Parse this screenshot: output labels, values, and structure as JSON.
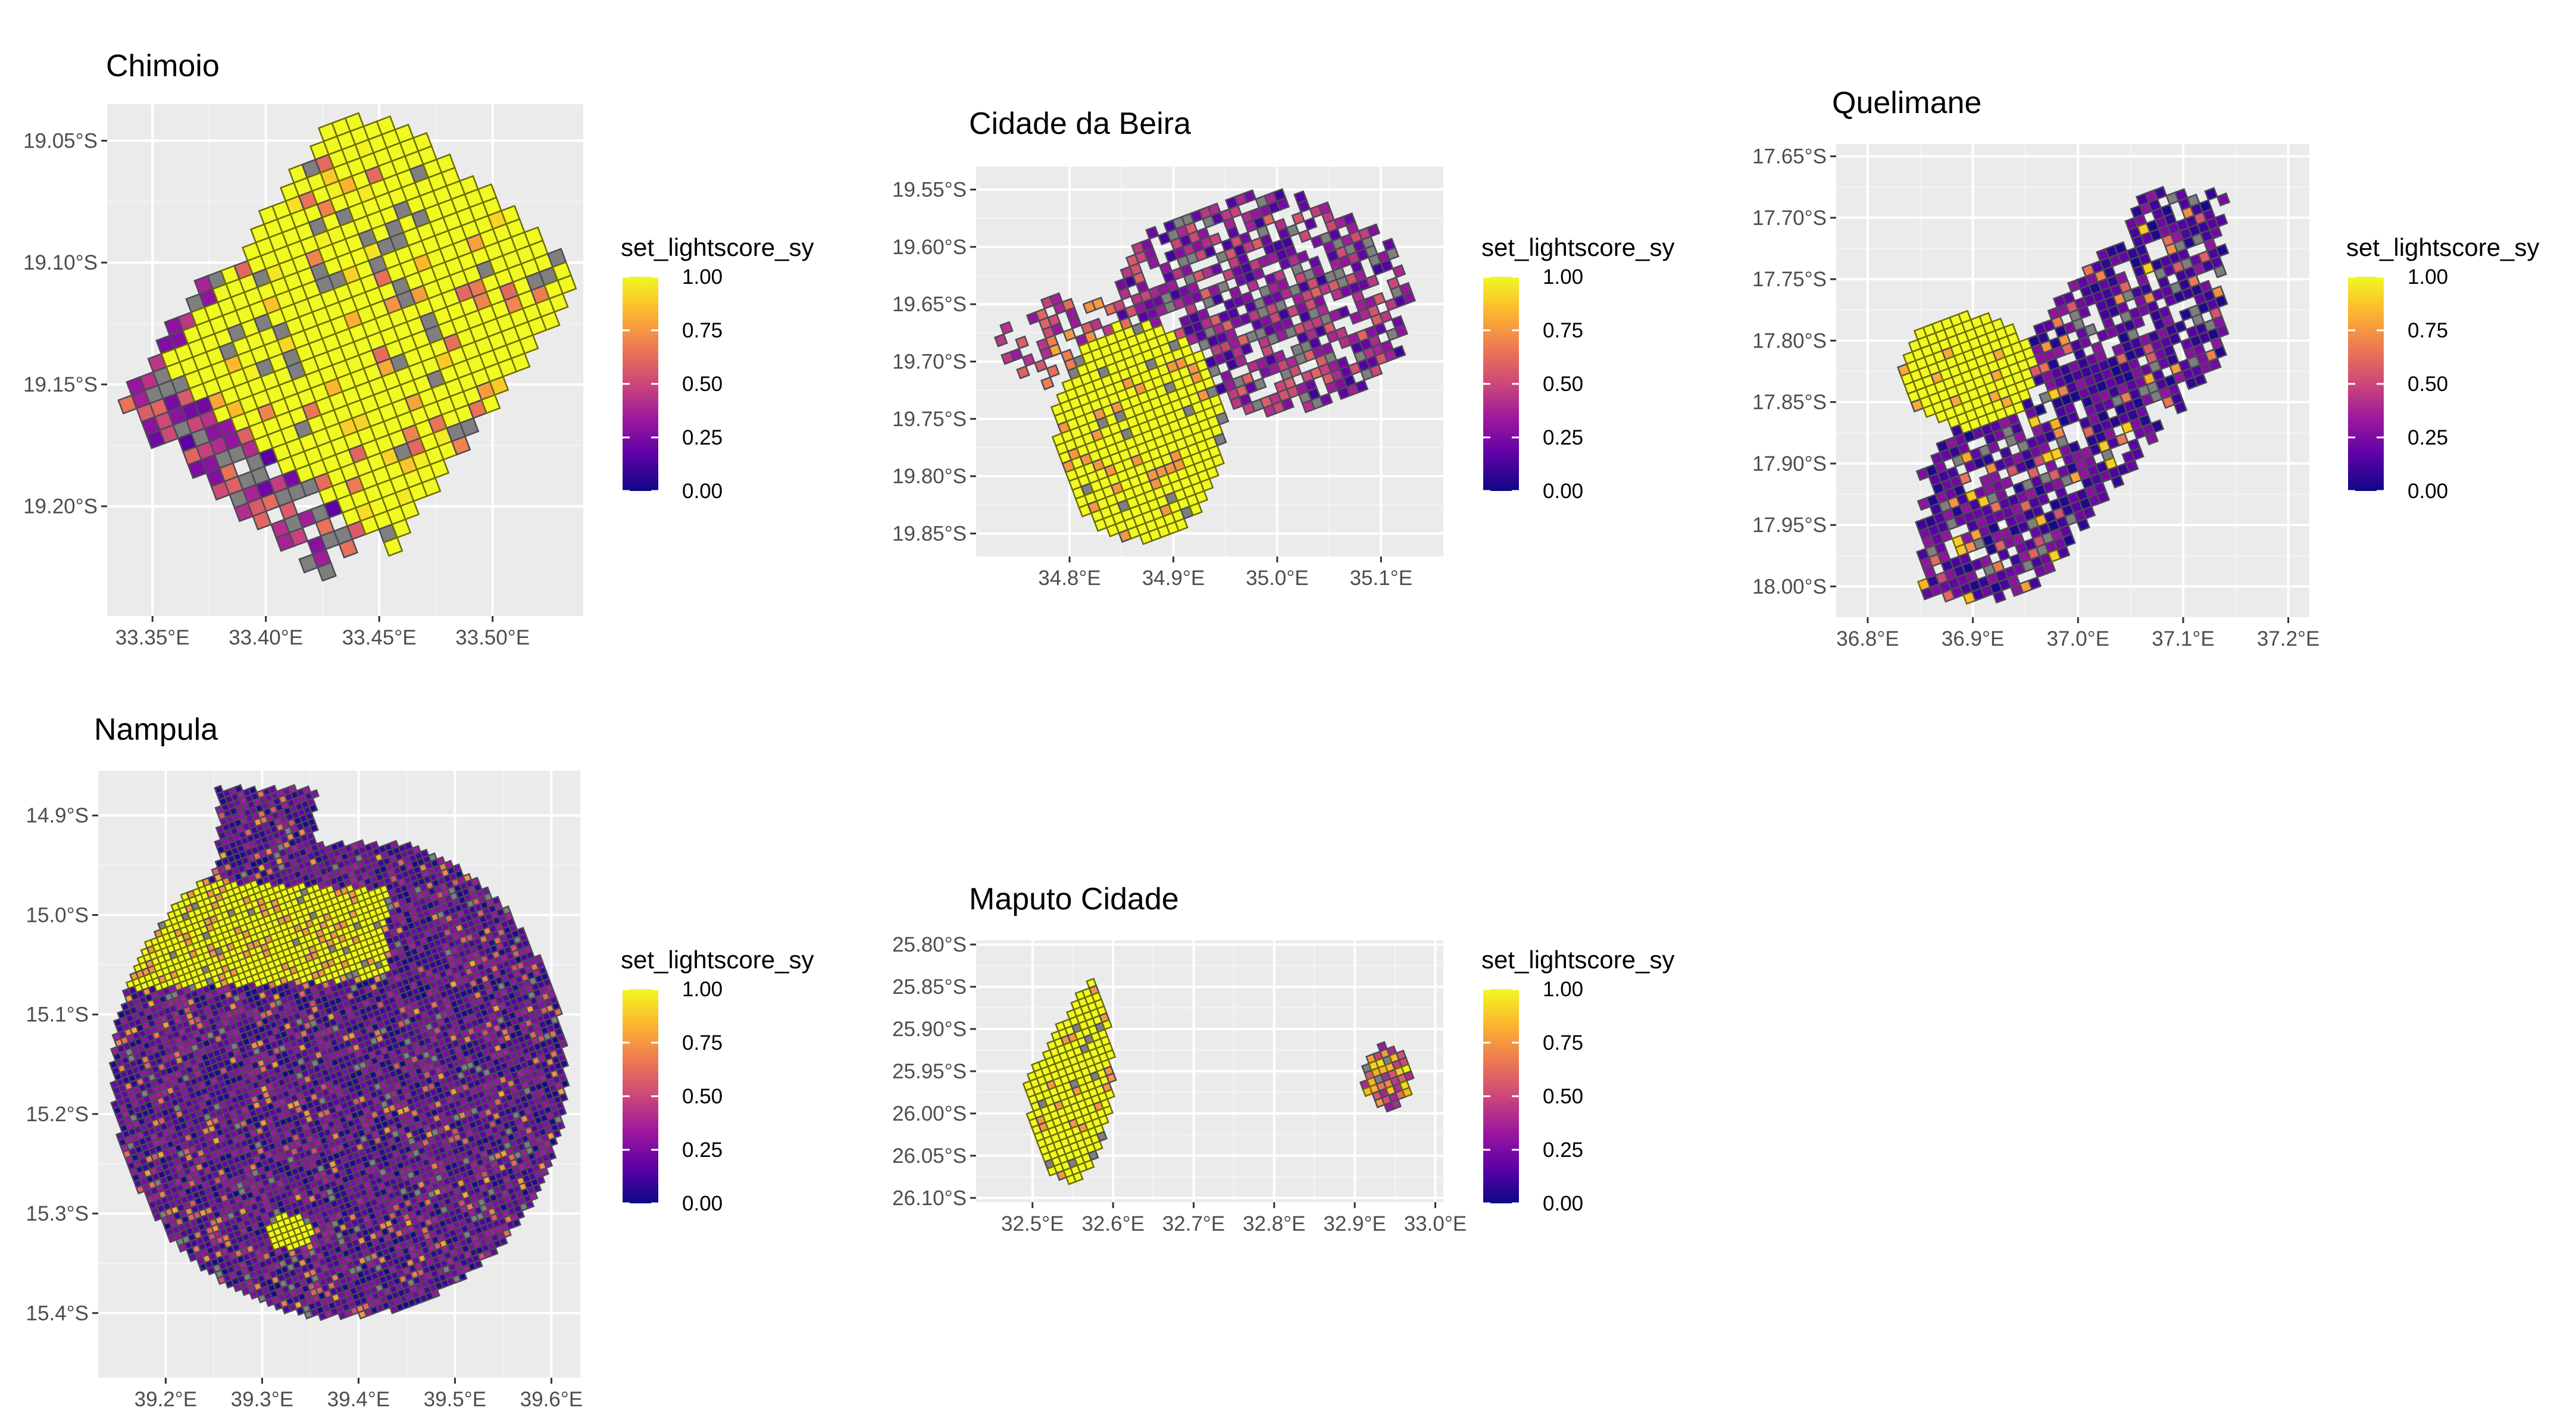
{
  "palette": {
    "panel_bg": "#ebebeb",
    "na_color": "#7f7f7f",
    "cell_border_yellow": "#6b6b00",
    "cell_border_dark": "#4a4a55",
    "plasma": [
      "#0d0887",
      "#5c01a6",
      "#9c179e",
      "#cc4778",
      "#ed7953",
      "#fdb42f",
      "#f0f921"
    ]
  },
  "legend": {
    "title": "set_lightscore_sy",
    "ticks": [
      "1.00",
      "0.75",
      "0.50",
      "0.25",
      "0.00"
    ],
    "tick_values": [
      1.0,
      0.75,
      0.5,
      0.25,
      0.0
    ]
  },
  "panels": [
    {
      "id": "chimoio",
      "title": "Chimoio",
      "lon_ticks": [
        "33.35°E",
        "33.40°E",
        "33.45°E",
        "33.50°E"
      ],
      "lat_ticks": [
        "19.05°S",
        "19.10°S",
        "19.15°S",
        "19.20°S"
      ],
      "lon_range": [
        33.33,
        33.54
      ],
      "lat_range": [
        -19.245,
        -19.035
      ],
      "lon_values": [
        33.35,
        33.4,
        33.45,
        33.5
      ],
      "lat_values": [
        -19.05,
        -19.1,
        -19.15,
        -19.2
      ],
      "map_data": {
        "score_summary": "mostly bright core (~1.0) in centre and north-east; purple/orange fringe (0.2-0.7) to west and south; scattered missing cells (grey)",
        "cell_count_estimate": 300
      }
    },
    {
      "id": "beira",
      "title": "Cidade da Beira",
      "lon_ticks": [
        "34.8°E",
        "34.9°E",
        "35.0°E",
        "35.1°E"
      ],
      "lat_ticks": [
        "19.55°S",
        "19.60°S",
        "19.65°S",
        "19.70°S",
        "19.75°S",
        "19.80°S",
        "19.85°S"
      ],
      "lon_range": [
        34.71,
        35.16
      ],
      "lat_range": [
        -19.87,
        -19.53
      ],
      "lon_values": [
        34.8,
        34.9,
        35.0,
        35.1
      ],
      "lat_values": [
        -19.55,
        -19.6,
        -19.65,
        -19.7,
        -19.75,
        -19.8,
        -19.85
      ],
      "map_data": {
        "score_summary": "bright yellow block in south-west (~1.0); purple/dark cells to north-east (0.1-0.4) with grey gaps",
        "cell_count_estimate": 450
      }
    },
    {
      "id": "quelimane",
      "title": "Quelimane",
      "lon_ticks": [
        "36.8°E",
        "36.9°E",
        "37.0°E",
        "37.1°E",
        "37.2°E"
      ],
      "lat_ticks": [
        "17.65°S",
        "17.70°S",
        "17.75°S",
        "17.80°S",
        "17.85°S",
        "17.90°S",
        "17.95°S",
        "18.00°S"
      ],
      "lon_range": [
        36.77,
        37.22
      ],
      "lat_range": [
        -18.025,
        -17.64
      ],
      "lon_values": [
        36.8,
        36.9,
        37.0,
        37.1,
        37.2
      ],
      "lat_values": [
        -17.65,
        -17.7,
        -17.75,
        -17.8,
        -17.85,
        -17.9,
        -17.95,
        -18.0
      ],
      "map_data": {
        "score_summary": "yellow core west-centre (~1.0), orange ring, mostly dark blue/purple (0.0-0.3) across the east and south",
        "cell_count_estimate": 500
      }
    },
    {
      "id": "nampula",
      "title": "Nampula",
      "lon_ticks": [
        "39.2°E",
        "39.3°E",
        "39.4°E",
        "39.5°E",
        "39.6°E"
      ],
      "lat_ticks": [
        "14.9°S",
        "15.0°S",
        "15.1°S",
        "15.2°S",
        "15.3°S",
        "15.4°S"
      ],
      "lon_range": [
        39.13,
        39.63
      ],
      "lat_range": [
        -15.465,
        -14.855
      ],
      "lon_values": [
        39.2,
        39.3,
        39.4,
        39.5,
        39.6
      ],
      "lat_values": [
        -14.9,
        -15.0,
        -15.1,
        -15.2,
        -15.3,
        -15.4
      ],
      "map_data": {
        "score_summary": "dense grid; bright yellow band across 15.05-15.15°S in the west, small yellow spot near 15.3°S; rest dark purple/blue (0.0-0.3)",
        "cell_count_estimate": 1800
      }
    },
    {
      "id": "maputo",
      "title": "Maputo Cidade",
      "lon_ticks": [
        "32.5°E",
        "32.6°E",
        "32.7°E",
        "32.8°E",
        "32.9°E",
        "33.0°E"
      ],
      "lat_ticks": [
        "25.80°S",
        "25.85°S",
        "25.90°S",
        "25.95°S",
        "26.00°S",
        "26.05°S",
        "26.10°S"
      ],
      "lon_range": [
        32.43,
        33.01
      ],
      "lat_range": [
        -26.105,
        -25.795
      ],
      "lon_values": [
        32.5,
        32.6,
        32.7,
        32.8,
        32.9,
        33.0
      ],
      "lat_values": [
        -25.8,
        -25.85,
        -25.9,
        -25.95,
        -26.0,
        -26.05,
        -26.1
      ],
      "map_data": {
        "score_summary": "main yellow cluster (~1.0) around 32.5-32.7°E with a few orange cells; small mixed cluster near 32.9-32.97°E",
        "cell_count_estimate": 380
      }
    }
  ]
}
